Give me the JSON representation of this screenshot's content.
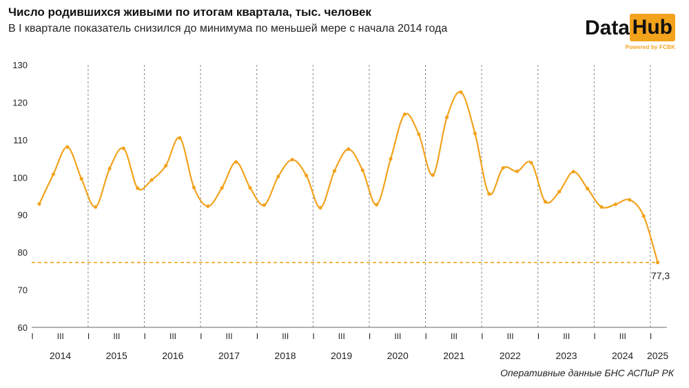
{
  "header": {
    "title": "Число родившихся живыми по итогам квартала, тыс. человек",
    "subtitle": "В I квартале показатель снизился до минимума по меньшей мере с начала 2014 года"
  },
  "logo": {
    "part1": "Data",
    "part2": "Hub",
    "powered": "Powered by FCBK"
  },
  "source": "Оперативные данные БНС АСПиР РК",
  "colors": {
    "line": "#f2a21b",
    "grid": "#888888",
    "text": "#222222"
  },
  "chart_data": {
    "type": "line",
    "title": "Число родившихся живыми по итогам квартала, тыс. человек",
    "ylim": [
      60,
      130
    ],
    "yticks": [
      60,
      70,
      80,
      90,
      100,
      110,
      120,
      130
    ],
    "quarter_tick_labels": [
      "I",
      "III"
    ],
    "years": [
      "2014",
      "2015",
      "2016",
      "2017",
      "2018",
      "2019",
      "2020",
      "2021",
      "2022",
      "2023",
      "2024",
      "2025"
    ],
    "series": [
      {
        "values": [
          92.9,
          100.8,
          108.1,
          99.6,
          92.1,
          102.3,
          107.7,
          97.1,
          99.3,
          103.1,
          110.5,
          97.3,
          92.3,
          97.2,
          104.1,
          97.2,
          92.6,
          100.2,
          104.7,
          100.5,
          91.9,
          101.7,
          107.5,
          101.9,
          92.7,
          104.9,
          116.8,
          111.5,
          100.6,
          116.0,
          122.7,
          111.7,
          95.6,
          102.5,
          101.6,
          103.9,
          93.5,
          96.2,
          101.5,
          97.0,
          92.1,
          92.8,
          94.0,
          89.7,
          77.3
        ]
      }
    ],
    "reference_line": {
      "value": 77.3,
      "style": "dashed"
    },
    "annotation": "77,3",
    "grid": "vertical dashed lines between years",
    "legend": "none"
  }
}
